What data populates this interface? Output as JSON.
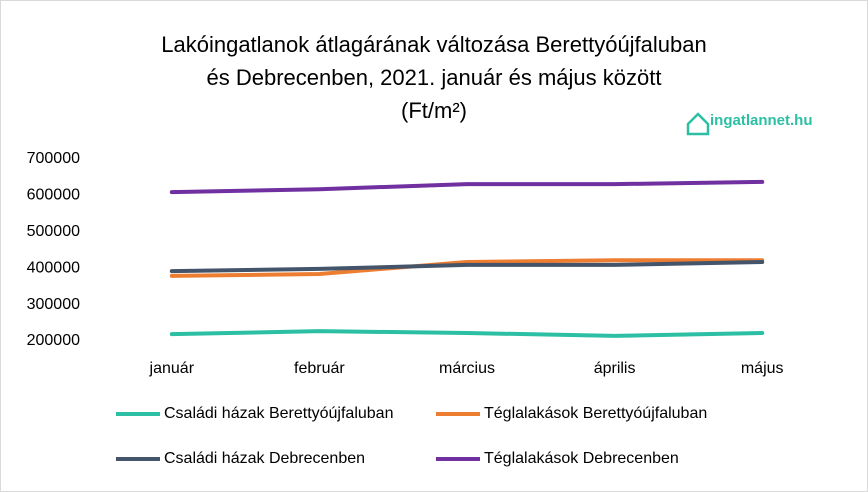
{
  "chart_data": {
    "type": "line",
    "title": [
      "Lakóingatlanok átlagárának változása Berettyóújfaluban",
      "és Debrecenben, 2021. január és május között",
      "(Ft/m²)"
    ],
    "logo": "ingatlannet.hu",
    "categories": [
      "január",
      "február",
      "március",
      "április",
      "május"
    ],
    "series": [
      {
        "name": "Családi házak Berettyóújfaluban",
        "color": "#2cbfa4",
        "values": [
          219000,
          227000,
          222000,
          214000,
          222000
        ]
      },
      {
        "name": "Téglalakások Berettyóújfaluban",
        "color": "#ed7d31",
        "values": [
          379000,
          384000,
          417000,
          422000,
          422000
        ]
      },
      {
        "name": "Családi házak Debrecenben",
        "color": "#44546a",
        "values": [
          392000,
          398000,
          409000,
          409000,
          417000
        ]
      },
      {
        "name": "Téglalakások Debrecenben",
        "color": "#7030a0",
        "values": [
          609000,
          617000,
          631000,
          631000,
          637000
        ]
      }
    ],
    "ylim": [
      200000,
      700000
    ],
    "yticks": [
      200000,
      300000,
      400000,
      500000,
      600000,
      700000
    ]
  }
}
